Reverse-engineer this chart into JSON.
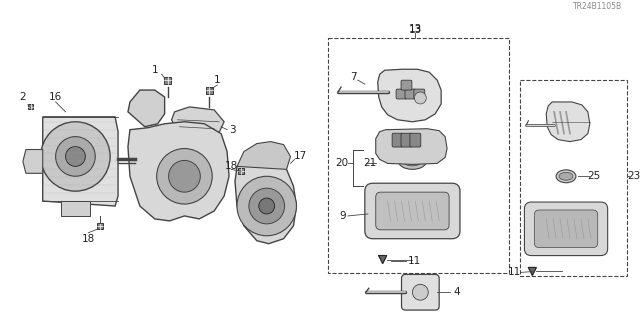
{
  "bg_color": "#ffffff",
  "line_color": "#444444",
  "dark_color": "#222222",
  "text_color": "#222222",
  "watermark": "TR24B1105B",
  "fig_w": 6.4,
  "fig_h": 3.2,
  "dpi": 100
}
